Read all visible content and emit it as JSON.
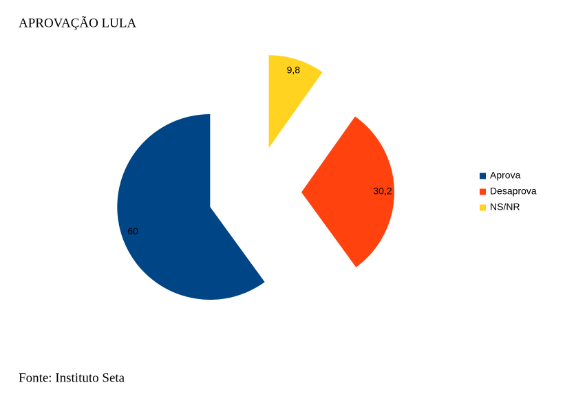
{
  "chart_data": {
    "type": "pie",
    "title": "APROVAÇÃO LULA",
    "categories": [
      "Aprova",
      "Desaprova",
      "NS/NR"
    ],
    "values": [
      60,
      30.2,
      9.8
    ],
    "value_labels": [
      "60",
      "30,2",
      "9,8"
    ],
    "colors": [
      "#004586",
      "#ff420e",
      "#ffd320"
    ],
    "legend": "right",
    "source": "Fonte: Instituto Seta"
  }
}
